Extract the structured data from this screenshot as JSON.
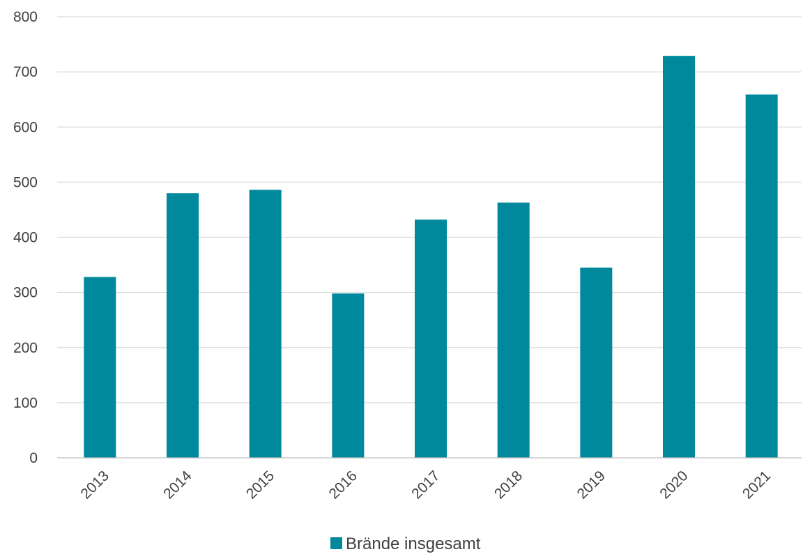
{
  "chart_data": {
    "type": "bar",
    "categories": [
      "2013",
      "2014",
      "2015",
      "2016",
      "2017",
      "2018",
      "2019",
      "2020",
      "2021"
    ],
    "series": [
      {
        "name": "Brände insgesamt",
        "color": "#00889d",
        "values": [
          328,
          480,
          486,
          298,
          432,
          463,
          345,
          729,
          659
        ]
      }
    ],
    "ylim": [
      0,
      800
    ],
    "yticks": [
      "0",
      "100",
      "200",
      "300",
      "400",
      "500",
      "600",
      "700",
      "800"
    ],
    "grid": true,
    "legend_position": "bottom-center",
    "title": "",
    "xlabel": "",
    "ylabel": ""
  }
}
